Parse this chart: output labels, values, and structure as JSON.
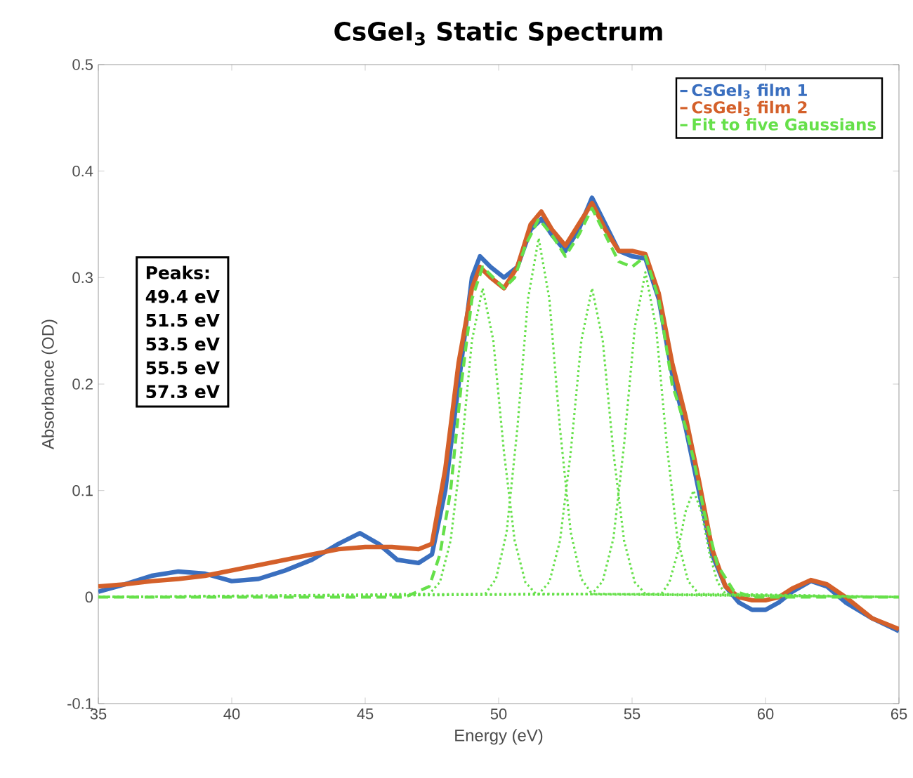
{
  "chart_data": {
    "type": "line",
    "title": "CsGeI$_{3}$ Static Spectrum",
    "xlabel": "Energy (eV)",
    "ylabel": "Absorbance (OD)",
    "xlim": [
      35,
      65
    ],
    "xticks": [
      35,
      40,
      45,
      50,
      55,
      60,
      65
    ],
    "ylim": [
      -0.1,
      0.5
    ],
    "yticks": [
      -0.1,
      0,
      0.1,
      0.2,
      0.3,
      0.4,
      0.5
    ],
    "grid": false,
    "legend": "top right",
    "marker": "none",
    "annotations": [
      "Peaks:",
      "49.4 eV",
      "51.5 eV",
      "53.5 eV",
      "55.5 eV",
      "57.3 eV"
    ],
    "series": [
      {
        "name": "CsGeI$_{3}$ film 1",
        "color": "#3a6fbf",
        "line_style": "solid",
        "x": [
          35,
          36,
          37,
          38,
          39,
          40,
          41,
          42,
          43,
          44,
          44.8,
          45.5,
          46.2,
          47,
          47.5,
          48,
          48.5,
          49.0,
          49.3,
          49.7,
          50.2,
          50.7,
          51.2,
          51.6,
          52.0,
          52.5,
          53.0,
          53.5,
          54.0,
          54.5,
          55.0,
          55.5,
          56.0,
          56.5,
          57.0,
          57.5,
          58.0,
          58.5,
          59.0,
          59.5,
          60,
          60.5,
          61,
          61.7,
          62.3,
          63,
          64,
          65
        ],
        "values": [
          0.005,
          0.012,
          0.02,
          0.024,
          0.022,
          0.015,
          0.017,
          0.025,
          0.035,
          0.05,
          0.06,
          0.05,
          0.035,
          0.032,
          0.04,
          0.1,
          null,
          0.3,
          0.32,
          0.31,
          0.3,
          0.31,
          0.345,
          0.355,
          0.34,
          0.325,
          0.345,
          0.375,
          0.35,
          0.325,
          0.32,
          0.318,
          0.28,
          0.21,
          0.16,
          0.1,
          0.04,
          0.01,
          -0.005,
          -0.012,
          -0.012,
          -0.005,
          0.005,
          0.015,
          0.01,
          -0.005,
          -0.02,
          -0.032
        ]
      },
      {
        "name": "CsGeI$_{3}$ film 2",
        "color": "#d4602a",
        "line_style": "solid",
        "x": [
          35,
          36,
          37,
          38,
          39,
          40,
          41,
          42,
          43,
          44,
          45,
          46,
          47,
          47.5,
          48,
          48.5,
          49.0,
          49.3,
          49.7,
          50.2,
          50.7,
          51.2,
          51.6,
          52.0,
          52.5,
          53.0,
          53.5,
          54.0,
          54.5,
          55.0,
          55.5,
          56.0,
          56.5,
          57.0,
          57.5,
          58.0,
          58.5,
          59,
          59.5,
          60,
          60.5,
          61,
          61.7,
          62.3,
          63,
          64,
          65
        ],
        "values": [
          0.01,
          0.012,
          0.015,
          0.017,
          0.02,
          0.025,
          0.03,
          0.035,
          0.04,
          0.045,
          0.047,
          0.047,
          0.045,
          0.05,
          0.12,
          0.22,
          0.29,
          0.31,
          0.3,
          0.29,
          0.31,
          0.35,
          0.362,
          0.345,
          0.33,
          0.35,
          0.37,
          0.345,
          0.325,
          0.325,
          0.322,
          0.285,
          0.22,
          0.17,
          0.11,
          0.045,
          0.01,
          0,
          -0.003,
          -0.003,
          0,
          0.008,
          0.016,
          0.012,
          0,
          -0.02,
          -0.03
        ]
      },
      {
        "name": "Fit to five Gaussians",
        "color": "#66e04a",
        "line_style": "dashed",
        "x": [
          35,
          46.5,
          47.4,
          47.8,
          48.2,
          48.6,
          49.0,
          49.4,
          49.8,
          50.2,
          50.6,
          51.0,
          51.5,
          52.0,
          52.5,
          53.0,
          53.5,
          54.0,
          54.5,
          55.0,
          55.5,
          56.0,
          56.5,
          57.0,
          57.3,
          57.7,
          58.2,
          58.8,
          59.5,
          65
        ],
        "values": [
          0,
          0,
          0.01,
          0.04,
          0.1,
          0.2,
          0.28,
          0.31,
          0.3,
          0.29,
          0.3,
          0.33,
          0.355,
          0.34,
          0.32,
          0.34,
          0.365,
          0.34,
          0.315,
          0.31,
          0.32,
          0.28,
          0.2,
          0.16,
          0.13,
          0.08,
          0.03,
          0.006,
          0,
          0
        ]
      },
      {
        "color": "#66e04a",
        "line_style": "dotted",
        "x": [
          35,
          47.4,
          47.8,
          48.2,
          48.6,
          49.0,
          49.4,
          49.8,
          50.2,
          50.6,
          51.0,
          51.4,
          65
        ],
        "values": [
          0,
          0.003,
          0.014,
          0.053,
          0.136,
          0.241,
          0.29,
          0.241,
          0.136,
          0.053,
          0.014,
          0.003,
          0
        ]
      },
      {
        "color": "#66e04a",
        "line_style": "dotted",
        "x": [
          35,
          49.5,
          49.9,
          50.3,
          50.7,
          51.1,
          51.5,
          51.9,
          52.3,
          52.7,
          53.1,
          53.5,
          65
        ],
        "values": [
          0,
          0.003,
          0.017,
          0.061,
          0.158,
          0.28,
          0.337,
          0.28,
          0.158,
          0.061,
          0.017,
          0.003,
          0
        ]
      },
      {
        "color": "#66e04a",
        "line_style": "dotted",
        "x": [
          35,
          51.5,
          51.9,
          52.3,
          52.7,
          53.1,
          53.5,
          53.9,
          54.3,
          54.7,
          55.1,
          55.5,
          65
        ],
        "values": [
          0,
          0.003,
          0.014,
          0.053,
          0.136,
          0.241,
          0.29,
          0.241,
          0.136,
          0.053,
          0.014,
          0.003,
          0
        ]
      },
      {
        "color": "#66e04a",
        "line_style": "dotted",
        "x": [
          35,
          53.5,
          53.9,
          54.3,
          54.7,
          55.1,
          55.5,
          55.9,
          56.3,
          56.7,
          57.1,
          57.5,
          65
        ],
        "values": [
          0,
          0.003,
          0.015,
          0.055,
          0.143,
          0.253,
          0.305,
          0.253,
          0.143,
          0.055,
          0.015,
          0.003,
          0
        ]
      },
      {
        "color": "#66e04a",
        "line_style": "dotted",
        "x": [
          35,
          56.1,
          56.4,
          56.7,
          57.0,
          57.3,
          57.6,
          57.9,
          58.2,
          58.5,
          65
        ],
        "values": [
          0,
          0.003,
          0.014,
          0.041,
          0.08,
          0.1,
          0.08,
          0.041,
          0.014,
          0.003,
          0
        ]
      }
    ]
  }
}
